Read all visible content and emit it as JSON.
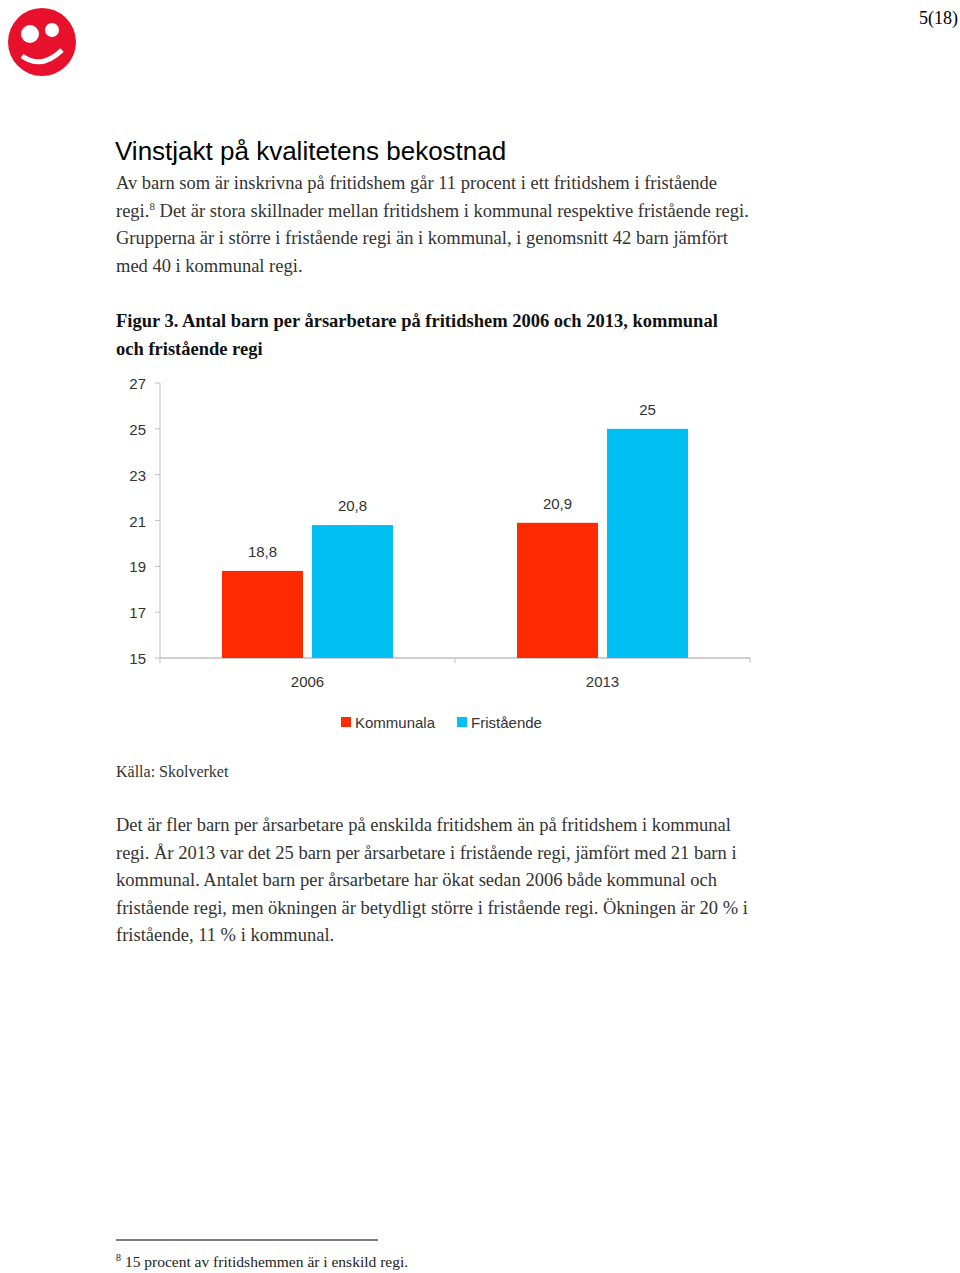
{
  "page_number": "5(18)",
  "heading": "Vinstjakt på kvalitetens bekostnad",
  "intro": [
    "Av barn som är inskrivna på fritidshem går 11 procent i ett fritidshem i fristående",
    {
      "before": "regi.",
      "footnote_ref": "8",
      "after": " Det är stora skillnader mellan fritidshem i kommunal respektive fristående regi."
    },
    "Grupperna är i större i fristående regi än i kommunal, i genomsnitt 42 barn jämfört",
    "med 40 i kommunal regi."
  ],
  "figure_caption": [
    "Figur 3. Antal barn per årsarbetare på fritidshem 2006 och 2013, kommunal",
    "och fristående regi"
  ],
  "chart_data": {
    "type": "bar",
    "categories": [
      "2006",
      "2013"
    ],
    "series": [
      {
        "name": "Kommunala",
        "color": "#ff2a00",
        "values": [
          18.8,
          20.9
        ],
        "value_labels": [
          "18,8",
          "20,9"
        ]
      },
      {
        "name": "Fristående",
        "color": "#00bff2",
        "values": [
          20.8,
          25
        ],
        "value_labels": [
          "20,8",
          "25"
        ]
      }
    ],
    "ylim": [
      15,
      27
    ],
    "yticks": [
      15,
      17,
      19,
      21,
      23,
      25,
      27
    ],
    "data_labels": true,
    "legend": "bottom",
    "grid": false
  },
  "source": "Källa: Skolverket",
  "body": [
    "Det är fler barn per årsarbetare på enskilda fritidshem än på fritidshem i kommunal",
    "regi. År 2013 var det 25 barn per årsarbetare i fristående regi, jämfört med 21 barn i",
    "kommunal. Antalet barn per årsarbetare har ökat sedan 2006 både kommunal och",
    "fristående regi, men ökningen är betydligt större i fristående regi. Ökningen är 20 % i",
    "fristående, 11 % i kommunal."
  ],
  "footnote": {
    "ref": "8",
    "text": " 15 procent av fritidshemmen är i enskild regi."
  }
}
